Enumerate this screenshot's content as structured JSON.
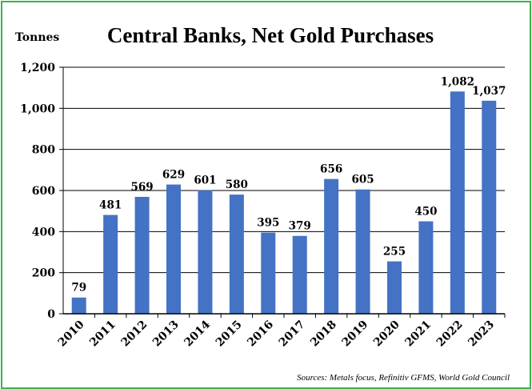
{
  "chart_data": {
    "type": "bar",
    "title": "Central Banks, Net Gold Purchases",
    "ylabel": "Tonnes",
    "xlabel": "",
    "categories": [
      "2010",
      "2011",
      "2012",
      "2013",
      "2014",
      "2015",
      "2016",
      "2017",
      "2018",
      "2019",
      "2020",
      "2021",
      "2022",
      "2023"
    ],
    "values": [
      79,
      481,
      569,
      629,
      601,
      580,
      395,
      379,
      656,
      605,
      255,
      450,
      1082,
      1037
    ],
    "data_labels": [
      "79",
      "481",
      "569",
      "629",
      "601",
      "580",
      "395",
      "379",
      "656",
      "605",
      "255",
      "450",
      "1,082",
      "1,037"
    ],
    "ylim": [
      0,
      1200
    ],
    "yticks": [
      0,
      200,
      400,
      600,
      800,
      1000,
      1200
    ],
    "ytick_labels": [
      "0",
      "200",
      "400",
      "600",
      "800",
      "1,000",
      "1,200"
    ],
    "grid": true,
    "bar_color": "#4472c4",
    "grid_color": "#000000",
    "border_color": "#39b54a",
    "source": "Sources: Metals focus, Refinitiv GFMS, World Gold Council"
  }
}
